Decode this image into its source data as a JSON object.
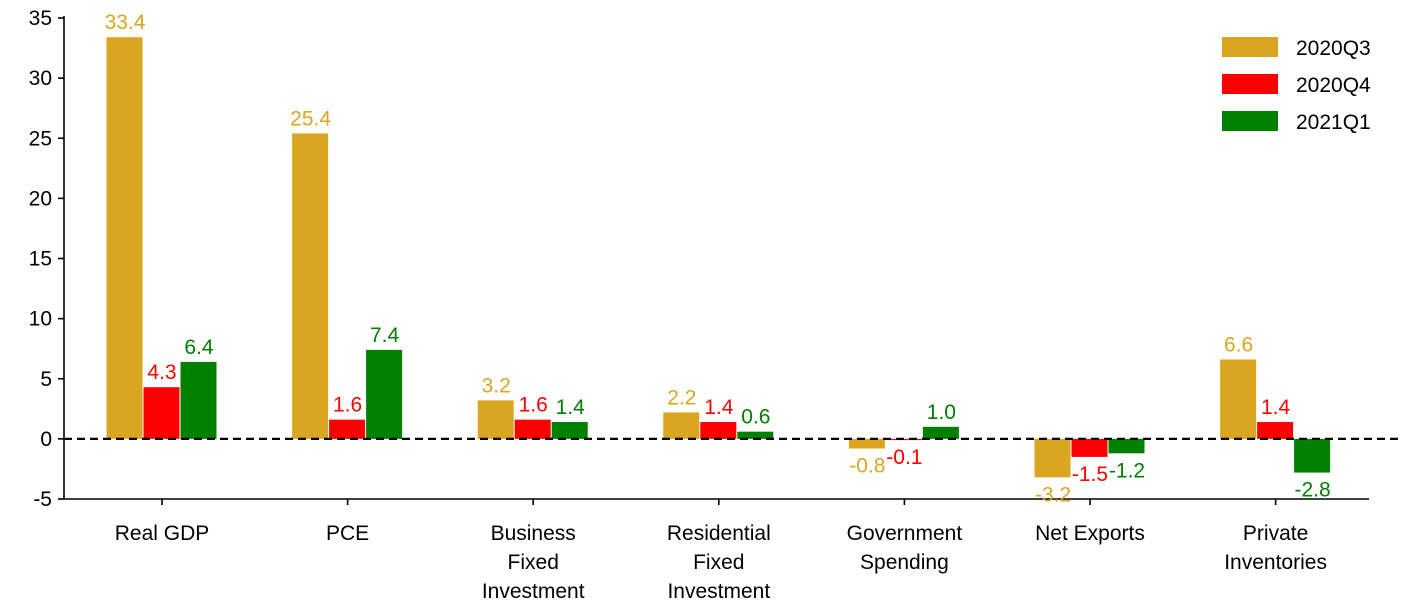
{
  "chart_data": {
    "type": "bar",
    "title": "",
    "xlabel": "",
    "ylabel": "",
    "ylim": [
      -5,
      35
    ],
    "yticks": [
      -5,
      0,
      5,
      10,
      15,
      20,
      25,
      30,
      35
    ],
    "grid": false,
    "legend_position": "top-right",
    "zero_line": "dashed",
    "categories": [
      [
        "Real GDP"
      ],
      [
        "PCE"
      ],
      [
        "Business",
        "Fixed",
        "Investment"
      ],
      [
        "Residential",
        "Fixed",
        "Investment"
      ],
      [
        "Government",
        "Spending"
      ],
      [
        "Net Exports"
      ],
      [
        "Private",
        "Inventories"
      ]
    ],
    "series": [
      {
        "name": "2020Q3",
        "color": "#DAA520",
        "values": [
          33.4,
          25.4,
          3.2,
          2.2,
          -0.8,
          -3.2,
          6.6
        ],
        "labels": [
          "33.4",
          "25.4",
          "3.2",
          "2.2",
          "-0.8",
          "-3.2",
          "6.6"
        ]
      },
      {
        "name": "2020Q4",
        "color": "#FF0000",
        "values": [
          4.3,
          1.6,
          1.6,
          1.4,
          -0.1,
          -1.5,
          1.4
        ],
        "labels": [
          "4.3",
          "1.6",
          "1.6",
          "1.4",
          "-0.1",
          "-1.5",
          "1.4"
        ]
      },
      {
        "name": "2021Q1",
        "color": "#008000",
        "values": [
          6.4,
          7.4,
          1.4,
          0.6,
          1.0,
          -1.2,
          -2.8
        ],
        "labels": [
          "6.4",
          "7.4",
          "1.4",
          "0.6",
          "1.0",
          "-1.2",
          "-2.8"
        ]
      }
    ]
  }
}
